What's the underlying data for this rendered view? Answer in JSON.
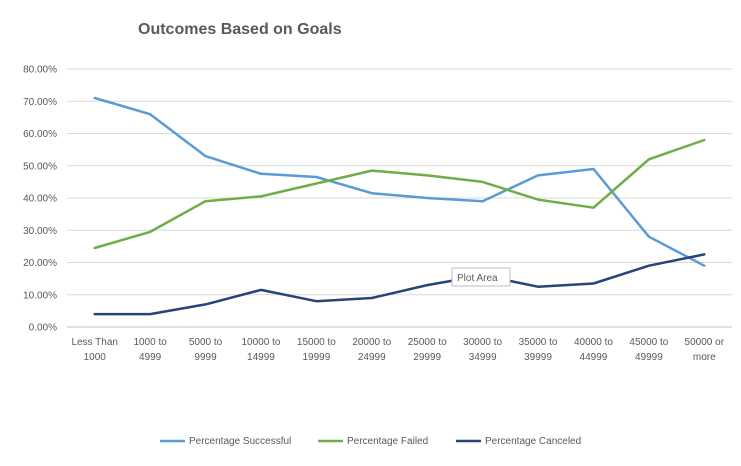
{
  "chart_data": {
    "type": "line",
    "title": "Outcomes Based on Goals",
    "xlabel": "",
    "ylabel": "",
    "ylim": [
      0,
      0.8
    ],
    "yticks": [
      "0.00%",
      "10.00%",
      "20.00%",
      "30.00%",
      "40.00%",
      "50.00%",
      "60.00%",
      "70.00%",
      "80.00%"
    ],
    "grid": true,
    "legend_position": "bottom",
    "categories": [
      [
        "Less Than",
        "1000"
      ],
      [
        "1000 to",
        "4999"
      ],
      [
        "5000 to",
        "9999"
      ],
      [
        "10000 to",
        "14999"
      ],
      [
        "15000 to",
        "19999"
      ],
      [
        "20000 to",
        "24999"
      ],
      [
        "25000 to",
        "29999"
      ],
      [
        "30000 to",
        "34999"
      ],
      [
        "35000 to",
        "39999"
      ],
      [
        "40000 to",
        "44999"
      ],
      [
        "45000 to",
        "49999"
      ],
      [
        "50000 or",
        "more"
      ]
    ],
    "series": [
      {
        "name": "Percentage Successful",
        "color": "#5b9bd5",
        "values": [
          0.71,
          0.66,
          0.53,
          0.475,
          0.465,
          0.415,
          0.4,
          0.39,
          0.47,
          0.49,
          0.28,
          0.19
        ]
      },
      {
        "name": "Percentage Failed",
        "color": "#70ad47",
        "values": [
          0.245,
          0.295,
          0.39,
          0.405,
          0.445,
          0.485,
          0.47,
          0.45,
          0.395,
          0.37,
          0.52,
          0.58
        ]
      },
      {
        "name": "Percentage Canceled",
        "color": "#264478",
        "values": [
          0.04,
          0.04,
          0.07,
          0.115,
          0.08,
          0.09,
          0.13,
          0.16,
          0.125,
          0.135,
          0.19,
          0.225
        ]
      }
    ],
    "annotation": "Plot Area"
  }
}
